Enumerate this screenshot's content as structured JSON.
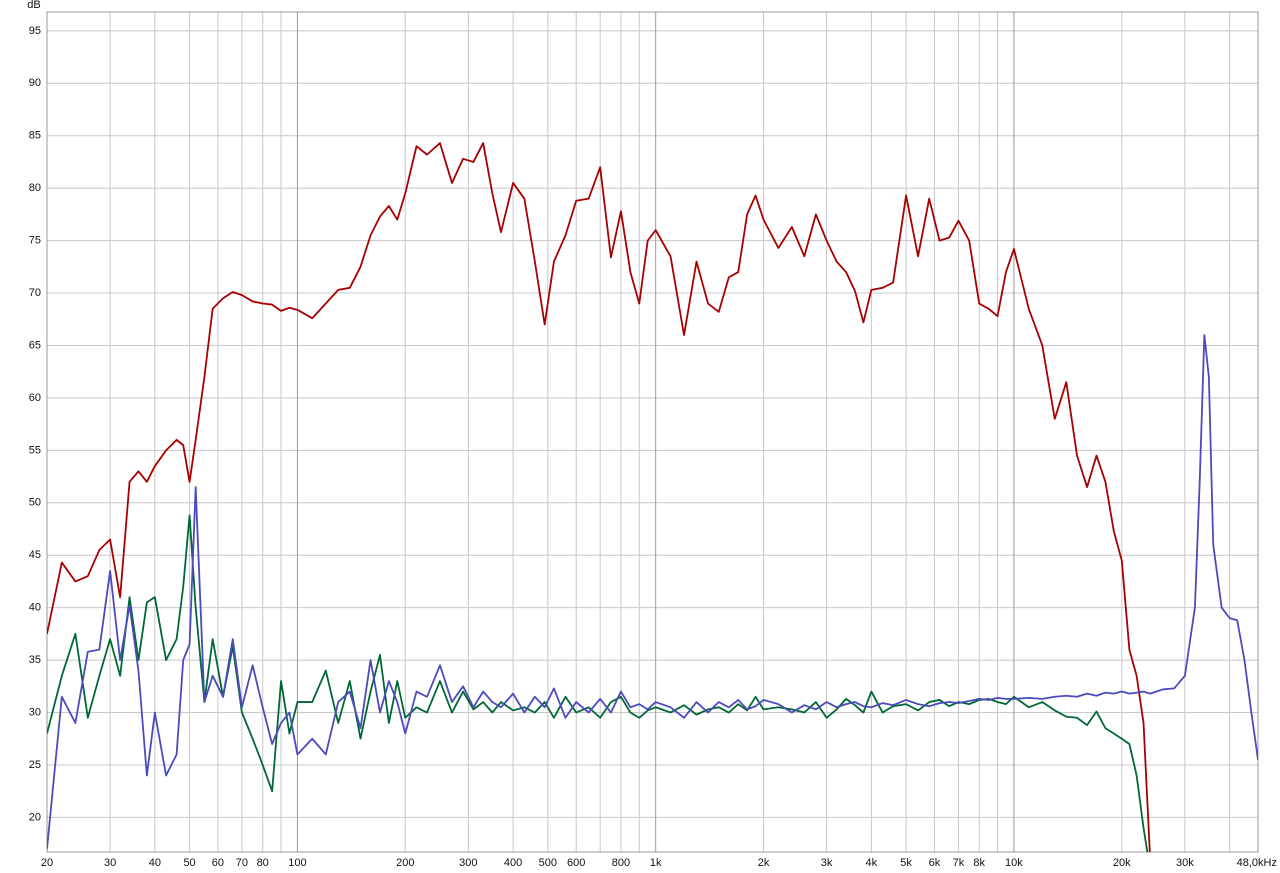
{
  "chart_data": {
    "type": "line",
    "y_label": "dB",
    "xscale": "log",
    "xlim": [
      20,
      48000
    ],
    "ylim": [
      16.7,
      96.8
    ],
    "xticks": [
      20,
      30,
      40,
      50,
      60,
      70,
      80,
      100,
      200,
      300,
      400,
      500,
      600,
      800,
      {
        "value": 1000,
        "label": "1k"
      },
      {
        "value": 2000,
        "label": "2k"
      },
      {
        "value": 3000,
        "label": "3k"
      },
      {
        "value": 4000,
        "label": "4k"
      },
      {
        "value": 5000,
        "label": "5k"
      },
      {
        "value": 6000,
        "label": "6k"
      },
      {
        "value": 7000,
        "label": "7k"
      },
      {
        "value": 8000,
        "label": "8k"
      },
      {
        "value": 10000,
        "label": "10k"
      },
      {
        "value": 20000,
        "label": "20k"
      },
      {
        "value": 30000,
        "label": "30k"
      },
      {
        "value": 48000,
        "label": "48,0kHz"
      }
    ],
    "xgrid_minor": [
      90,
      700,
      900,
      9000,
      40000
    ],
    "yticks": [
      20,
      25,
      30,
      35,
      40,
      45,
      50,
      55,
      60,
      65,
      70,
      75,
      80,
      85,
      90,
      95
    ],
    "grid": true,
    "x": [
      20,
      22,
      24,
      26,
      28,
      30,
      32,
      34,
      36,
      38,
      40,
      43,
      46,
      48,
      50,
      52,
      55,
      58,
      62,
      66,
      70,
      75,
      80,
      85,
      90,
      95,
      100,
      110,
      120,
      130,
      140,
      150,
      160,
      170,
      180,
      190,
      200,
      215,
      230,
      250,
      270,
      290,
      310,
      330,
      350,
      370,
      400,
      430,
      460,
      490,
      520,
      560,
      600,
      650,
      700,
      750,
      800,
      850,
      900,
      950,
      1000,
      1100,
      1200,
      1300,
      1400,
      1500,
      1600,
      1700,
      1800,
      1900,
      2000,
      2200,
      2400,
      2600,
      2800,
      3000,
      3200,
      3400,
      3600,
      3800,
      4000,
      4300,
      4600,
      5000,
      5400,
      5800,
      6200,
      6600,
      7000,
      7500,
      8000,
      8500,
      9000,
      9500,
      10000,
      11000,
      12000,
      13000,
      14000,
      15000,
      16000,
      17000,
      18000,
      19000,
      20000,
      21000,
      22000,
      23000,
      24000,
      26000,
      28000,
      30000,
      32000,
      33000,
      34000,
      35000,
      36000,
      38000,
      40000,
      42000,
      44000,
      46000,
      48000
    ],
    "series": [
      {
        "color": "#a80000",
        "values": [
          37.5,
          44.3,
          42.5,
          43,
          45.5,
          46.5,
          41,
          52,
          53,
          52,
          53.5,
          55,
          56,
          55.5,
          52,
          56,
          62,
          68.5,
          69.5,
          70.1,
          69.8,
          69.2,
          69,
          68.9,
          68.3,
          68.6,
          68.4,
          67.6,
          69,
          70.3,
          70.5,
          72.5,
          75.5,
          77.3,
          78.3,
          77,
          79.5,
          84,
          83.2,
          84.3,
          80.5,
          82.8,
          82.5,
          84.3,
          79.5,
          75.8,
          80.5,
          79,
          73,
          67,
          73,
          75.5,
          78.8,
          79,
          82,
          73.4,
          77.8,
          72,
          69,
          75,
          76,
          73.5,
          66,
          73,
          69,
          68.2,
          71.5,
          72,
          77.5,
          79.3,
          77,
          74.3,
          76.3,
          73.5,
          77.5,
          75,
          73,
          72,
          70.2,
          67.2,
          70.3,
          70.5,
          71,
          79.3,
          73.5,
          79,
          75,
          75.3,
          76.9,
          75,
          69,
          68.5,
          67.8,
          72,
          74.2,
          68.5,
          65,
          58,
          61.5,
          54.5,
          51.5,
          54.5,
          52,
          47.3,
          44.5,
          36,
          33.5,
          29,
          16,
          null,
          null,
          null,
          null,
          null,
          null,
          null,
          null,
          null,
          null,
          null,
          null,
          null,
          null
        ]
      },
      {
        "color": "#006835",
        "values": [
          28,
          33.5,
          37.5,
          29.5,
          33.5,
          37,
          33.5,
          41,
          35,
          40.5,
          41,
          35,
          37,
          42,
          48.8,
          40,
          31,
          37,
          31.5,
          36.3,
          30,
          27.5,
          25,
          22.5,
          33,
          28,
          31,
          31,
          34,
          29,
          33,
          27.5,
          32,
          35.5,
          29,
          33,
          29.5,
          30.5,
          30,
          33,
          30,
          32,
          30.3,
          31,
          30,
          31,
          30.2,
          30.5,
          30,
          31,
          29.5,
          31.5,
          30,
          30.5,
          29.5,
          31,
          31.5,
          30,
          29.5,
          30.2,
          30.5,
          30,
          30.7,
          29.8,
          30.3,
          30.5,
          30,
          30.8,
          30.2,
          31.5,
          30.3,
          30.5,
          30.3,
          30,
          31,
          29.5,
          30.3,
          31.3,
          30.7,
          30,
          32,
          30,
          30.6,
          30.8,
          30.2,
          31,
          31.2,
          30.6,
          31,
          30.8,
          31.2,
          31.3,
          31,
          30.8,
          31.5,
          30.5,
          31,
          30.2,
          29.6,
          29.5,
          28.8,
          30.1,
          28.5,
          28,
          27.5,
          27,
          24,
          19,
          15,
          null,
          null,
          null,
          null,
          null,
          null,
          null,
          null,
          null,
          null,
          null,
          null,
          null,
          null
        ]
      },
      {
        "color": "#4b4bbd",
        "values": [
          17,
          31.5,
          29,
          35.8,
          36,
          43.5,
          35,
          40.2,
          34,
          24,
          30,
          24,
          26,
          35,
          36.5,
          51.5,
          31,
          33.5,
          31.5,
          37,
          30.5,
          34.5,
          30.5,
          27,
          29,
          30,
          26,
          27.5,
          26,
          31,
          32,
          28.5,
          35,
          30,
          33,
          31,
          28,
          32,
          31.5,
          34.5,
          31,
          32.5,
          30.5,
          32,
          31,
          30.5,
          31.8,
          30,
          31.5,
          30.5,
          32.3,
          29.5,
          31,
          30,
          31.3,
          30,
          32,
          30.5,
          30.8,
          30.3,
          31,
          30.5,
          29.5,
          31,
          30,
          31,
          30.5,
          31.2,
          30.3,
          30.6,
          31.2,
          30.8,
          30,
          30.7,
          30.3,
          31,
          30.5,
          30.8,
          31,
          30.6,
          30.5,
          30.9,
          30.7,
          31.2,
          30.8,
          30.6,
          30.9,
          31,
          30.9,
          31.1,
          31.3,
          31.2,
          31.4,
          31.3,
          31.3,
          31.4,
          31.3,
          31.5,
          31.6,
          31.5,
          31.8,
          31.6,
          31.9,
          31.8,
          32,
          31.8,
          31.9,
          32,
          31.8,
          32.2,
          32.3,
          33.5,
          40,
          52,
          66,
          62,
          46,
          40,
          39,
          38.8,
          35,
          30,
          25.5
        ]
      }
    ]
  }
}
